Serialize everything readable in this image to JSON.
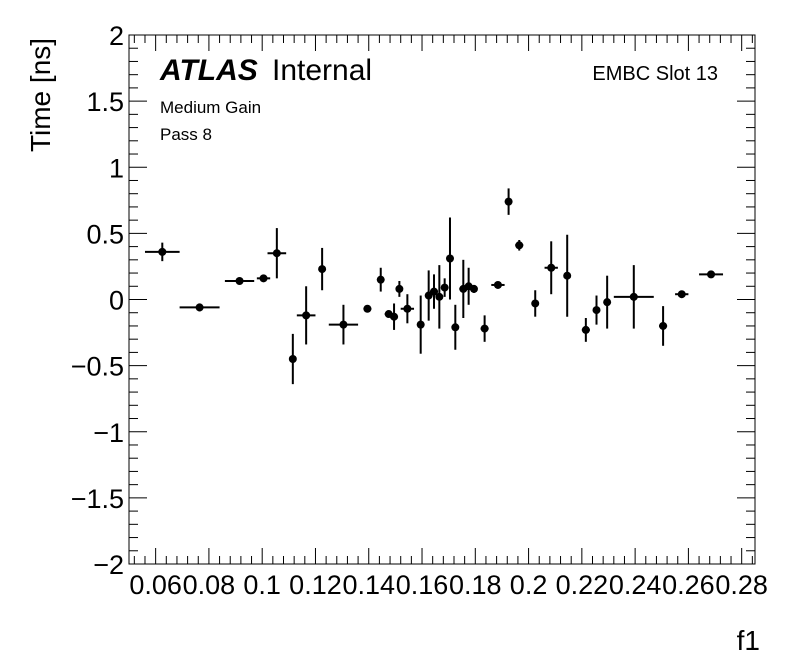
{
  "chart_data": {
    "type": "scatter",
    "xlabel": "f1",
    "ylabel": "Time [ns]",
    "xlim": [
      0.05,
      0.285
    ],
    "ylim": [
      -2,
      2
    ],
    "x_ticks": [
      "0.06",
      "0.08",
      "0.1",
      "0.12",
      "0.14",
      "0.16",
      "0.18",
      "0.2",
      "0.22",
      "0.24",
      "0.26",
      "0.28"
    ],
    "x_tick_values": [
      0.06,
      0.08,
      0.1,
      0.12,
      0.14,
      0.16,
      0.18,
      0.2,
      0.22,
      0.24,
      0.26,
      0.28
    ],
    "y_ticks": [
      "2",
      "1.5",
      "1",
      "0.5",
      "0",
      "−0.5",
      "−1",
      "−1.5",
      "−2"
    ],
    "y_tick_values": [
      2,
      1.5,
      1,
      0.5,
      0,
      -0.5,
      -1,
      -1.5,
      -2
    ],
    "grid": false,
    "marker_color": "#000000",
    "points": [
      {
        "x": 0.0625,
        "y": 0.36,
        "xerr": 0.0065,
        "yerr": 0.07
      },
      {
        "x": 0.0765,
        "y": -0.06,
        "xerr": 0.0075,
        "yerr": 0.03
      },
      {
        "x": 0.0915,
        "y": 0.14,
        "xerr": 0.0055,
        "yerr": 0.02
      },
      {
        "x": 0.1005,
        "y": 0.16,
        "xerr": 0.0025,
        "yerr": 0.02
      },
      {
        "x": 0.1055,
        "y": 0.35,
        "xerr": 0.0035,
        "yerr": 0.19
      },
      {
        "x": 0.1115,
        "y": -0.45,
        "xerr": 0.0005,
        "yerr": 0.19
      },
      {
        "x": 0.1165,
        "y": -0.12,
        "xerr": 0.0035,
        "yerr": 0.22
      },
      {
        "x": 0.1225,
        "y": 0.23,
        "xerr": 0.0005,
        "yerr": 0.16
      },
      {
        "x": 0.1305,
        "y": -0.19,
        "xerr": 0.0055,
        "yerr": 0.15
      },
      {
        "x": 0.1395,
        "y": -0.07,
        "xerr": 0.0015,
        "yerr": 0.02
      },
      {
        "x": 0.1445,
        "y": 0.15,
        "xerr": 0.0005,
        "yerr": 0.09
      },
      {
        "x": 0.1475,
        "y": -0.11,
        "xerr": 0.0015,
        "yerr": 0.02
      },
      {
        "x": 0.1495,
        "y": -0.13,
        "xerr": 0.0015,
        "yerr": 0.1
      },
      {
        "x": 0.1515,
        "y": 0.08,
        "xerr": 0.0005,
        "yerr": 0.06
      },
      {
        "x": 0.1545,
        "y": -0.07,
        "xerr": 0.0025,
        "yerr": 0.11
      },
      {
        "x": 0.1595,
        "y": -0.19,
        "xerr": 0.0005,
        "yerr": 0.22
      },
      {
        "x": 0.1625,
        "y": 0.03,
        "xerr": 0.0005,
        "yerr": 0.19
      },
      {
        "x": 0.1645,
        "y": 0.06,
        "xerr": 0.0015,
        "yerr": 0.13
      },
      {
        "x": 0.1665,
        "y": 0.02,
        "xerr": 0.0005,
        "yerr": 0.24
      },
      {
        "x": 0.1685,
        "y": 0.09,
        "xerr": 0.0005,
        "yerr": 0.07
      },
      {
        "x": 0.1705,
        "y": 0.31,
        "xerr": 0.0005,
        "yerr": 0.31
      },
      {
        "x": 0.1725,
        "y": -0.21,
        "xerr": 0.0005,
        "yerr": 0.17
      },
      {
        "x": 0.1755,
        "y": 0.08,
        "xerr": 0.0015,
        "yerr": 0.22
      },
      {
        "x": 0.1775,
        "y": 0.1,
        "xerr": 0.0005,
        "yerr": 0.14
      },
      {
        "x": 0.1795,
        "y": 0.08,
        "xerr": 0.0005,
        "yerr": 0.03
      },
      {
        "x": 0.1835,
        "y": -0.22,
        "xerr": 0.0015,
        "yerr": 0.1
      },
      {
        "x": 0.1885,
        "y": 0.11,
        "xerr": 0.0025,
        "yerr": 0.02
      },
      {
        "x": 0.1925,
        "y": 0.74,
        "xerr": 0.0005,
        "yerr": 0.1
      },
      {
        "x": 0.1965,
        "y": 0.41,
        "xerr": 0.0015,
        "yerr": 0.04
      },
      {
        "x": 0.2025,
        "y": -0.03,
        "xerr": 0.0005,
        "yerr": 0.1
      },
      {
        "x": 0.2085,
        "y": 0.24,
        "xerr": 0.0025,
        "yerr": 0.2
      },
      {
        "x": 0.2145,
        "y": 0.18,
        "xerr": 0.0005,
        "yerr": 0.31
      },
      {
        "x": 0.2215,
        "y": -0.23,
        "xerr": 0.0015,
        "yerr": 0.09
      },
      {
        "x": 0.2255,
        "y": -0.08,
        "xerr": 0.0005,
        "yerr": 0.11
      },
      {
        "x": 0.2295,
        "y": -0.02,
        "xerr": 0.0005,
        "yerr": 0.2
      },
      {
        "x": 0.2395,
        "y": 0.02,
        "xerr": 0.0075,
        "yerr": 0.24
      },
      {
        "x": 0.2505,
        "y": -0.2,
        "xerr": 0.0015,
        "yerr": 0.15
      },
      {
        "x": 0.2575,
        "y": 0.04,
        "xerr": 0.0025,
        "yerr": 0.01
      },
      {
        "x": 0.2685,
        "y": 0.19,
        "xerr": 0.0045,
        "yerr": 0.01
      }
    ]
  },
  "labels": {
    "atlas": "ATLAS",
    "internal": "Internal",
    "gain": "Medium Gain",
    "pass": "Pass 8",
    "slot": "EMBC Slot 13"
  }
}
